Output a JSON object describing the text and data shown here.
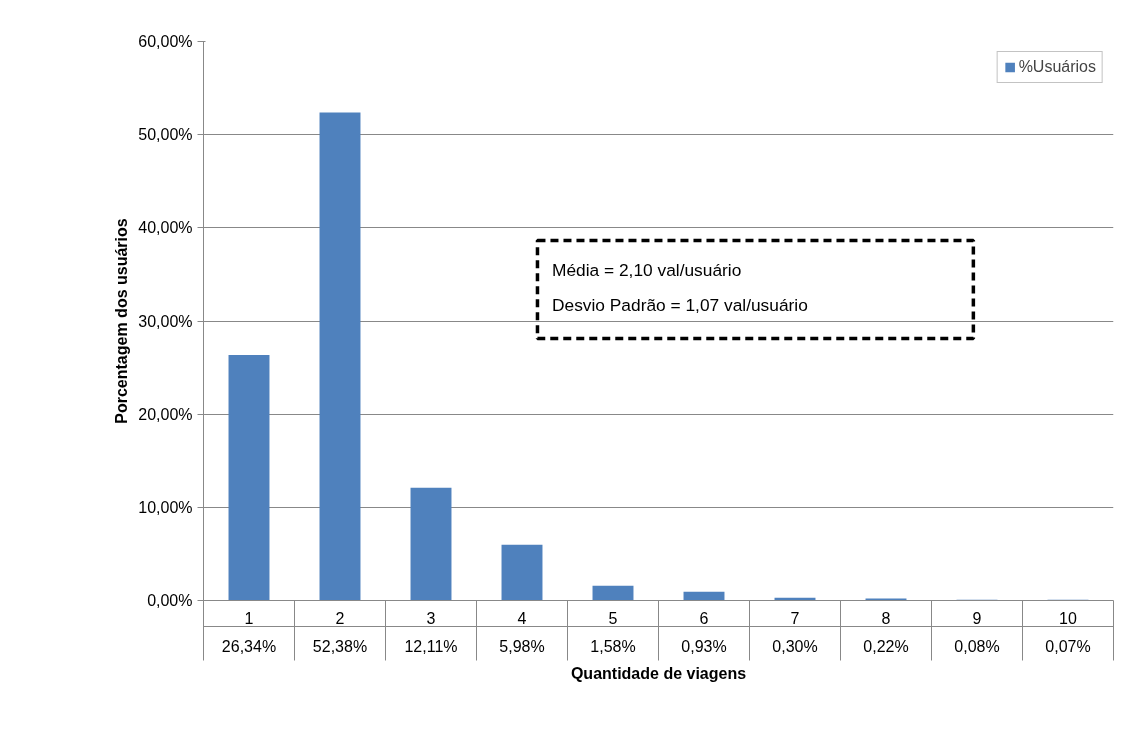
{
  "chart_data": {
    "type": "bar",
    "xlabel": "Quantidade de viagens",
    "ylabel": "Porcentagem dos usuários",
    "categories": [
      "1",
      "2",
      "3",
      "4",
      "5",
      "6",
      "7",
      "8",
      "9",
      "10"
    ],
    "series": [
      {
        "name": "%Usuários",
        "color": "#4f81bd",
        "values": [
          26.34,
          52.38,
          12.11,
          5.98,
          1.58,
          0.93,
          0.3,
          0.22,
          0.08,
          0.07
        ],
        "value_labels": [
          "26,34%",
          "52,38%",
          "12,11%",
          "5,98%",
          "1,58%",
          "0,93%",
          "0,30%",
          "0,22%",
          "0,08%",
          "0,07%"
        ]
      }
    ],
    "ylim": [
      0,
      60
    ],
    "yticks": [
      {
        "value": 0,
        "label": "0,00%"
      },
      {
        "value": 10,
        "label": "10,00%"
      },
      {
        "value": 20,
        "label": "20,00%"
      },
      {
        "value": 30,
        "label": "30,00%"
      },
      {
        "value": 40,
        "label": "40,00%"
      },
      {
        "value": 50,
        "label": "50,00%"
      },
      {
        "value": 60,
        "label": "60,00%"
      }
    ],
    "grid": "y",
    "legend": "top right",
    "data_labels": true,
    "annotations": [
      "Média = 2,10 val/usuário",
      "Desvio Padrão = 1,07 val/usuário"
    ]
  }
}
